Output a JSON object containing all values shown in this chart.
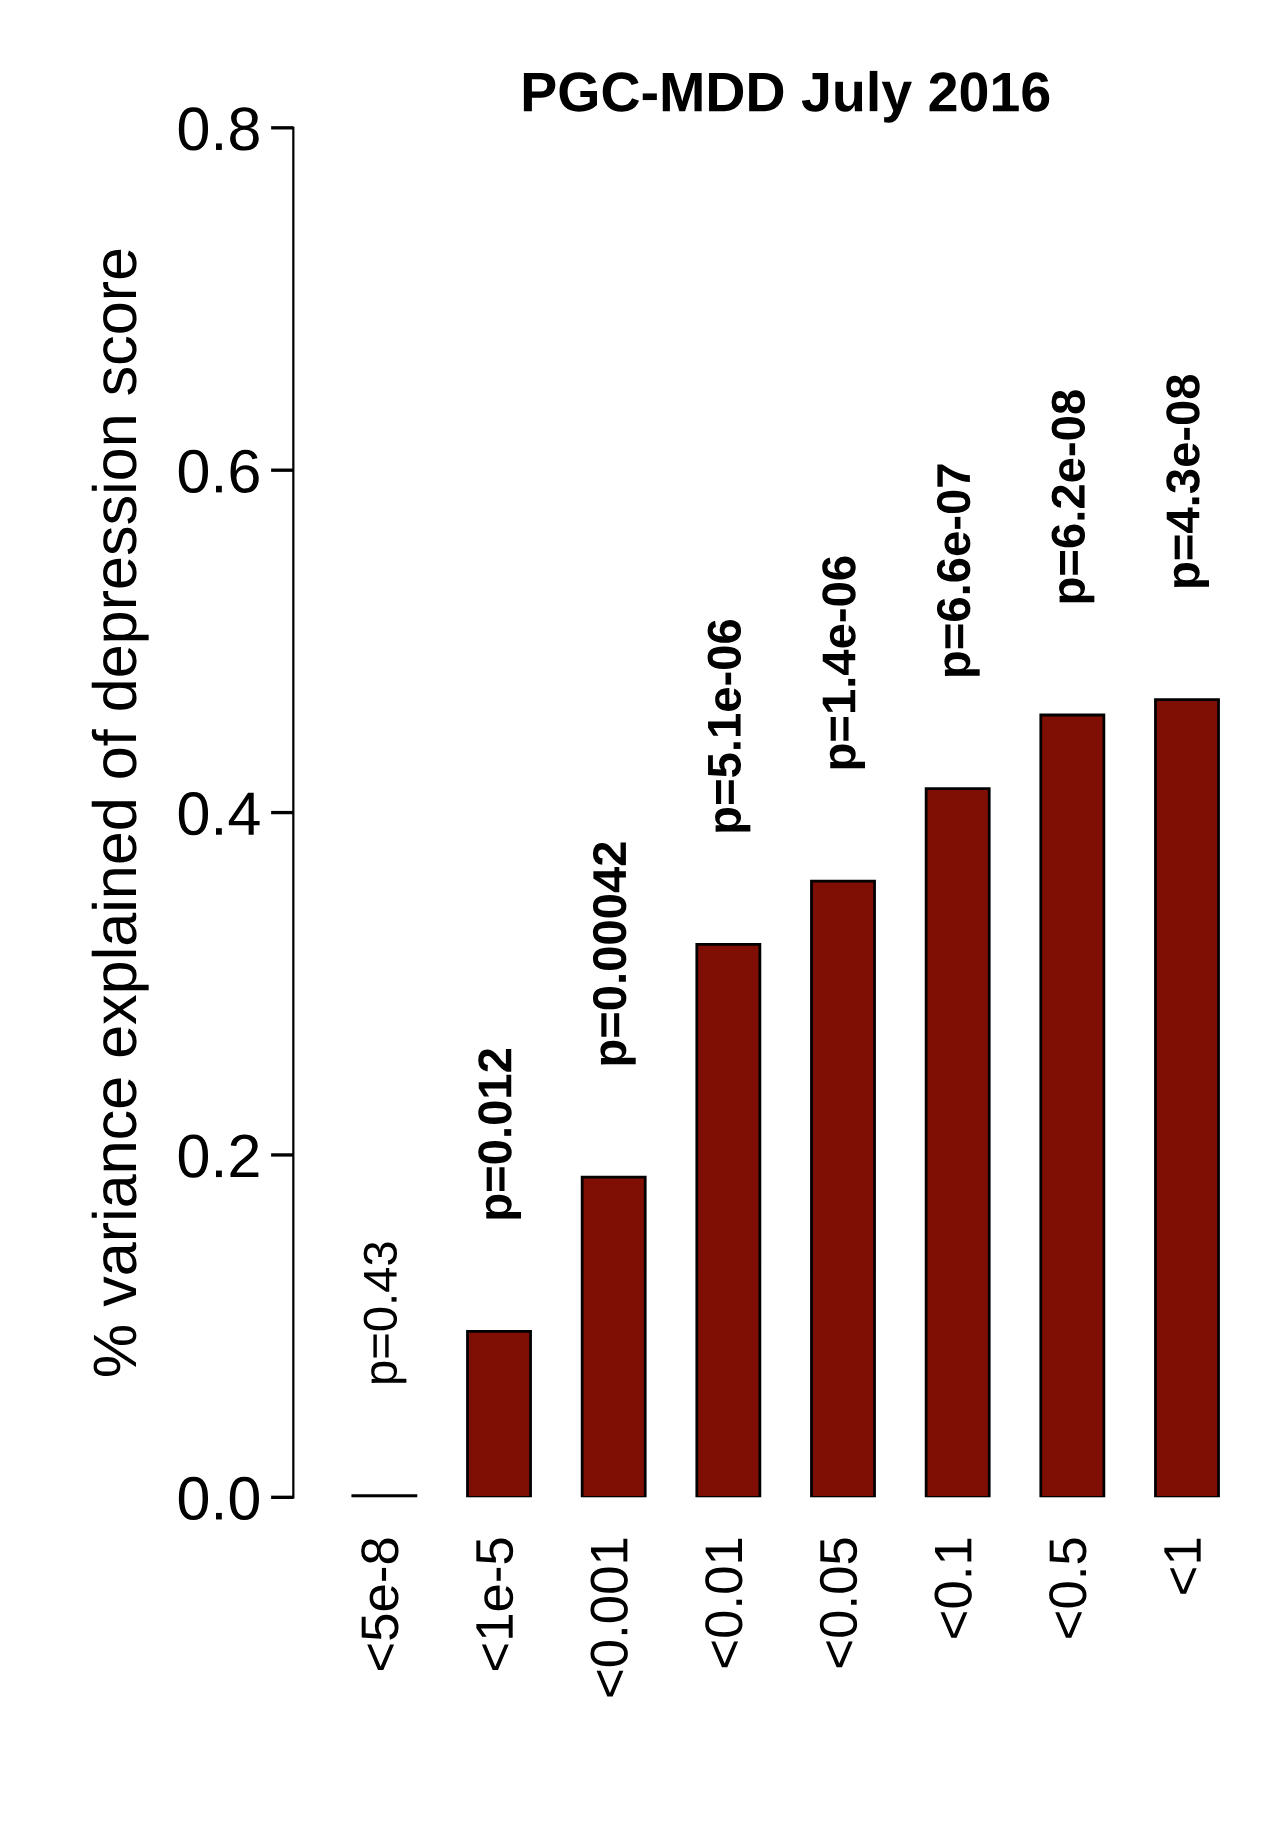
{
  "chart_data": {
    "type": "bar",
    "title": "PGC-MDD July 2016",
    "ylabel": "% variance explained of depression score",
    "categories": [
      "<5e-8",
      "<1e-5",
      "<0.001",
      "<0.01",
      "<0.05",
      "<0.1",
      "<0.5",
      "<1"
    ],
    "values": [
      0.001,
      0.097,
      0.187,
      0.323,
      0.36,
      0.414,
      0.457,
      0.466
    ],
    "annotations": [
      {
        "text": "p=0.43",
        "x": "<5e-8",
        "y": 0.001
      },
      {
        "text": "p=0.012",
        "x": "<1e-5",
        "y": 0.097
      },
      {
        "text": "p=0.00042",
        "x": "<0.001",
        "y": 0.187
      },
      {
        "text": "p=5.1e-06",
        "x": "<0.01",
        "y": 0.323
      },
      {
        "text": "p=1.4e-06",
        "x": "<0.05",
        "y": 0.36
      },
      {
        "text": "p=6.6e-07",
        "x": "<0.1",
        "y": 0.414
      },
      {
        "text": "p=6.2e-08",
        "x": "<0.5",
        "y": 0.457
      },
      {
        "text": "p=4.3e-08",
        "x": "<1",
        "y": 0.466
      }
    ],
    "color": "#7f0f04",
    "ylim": [
      0,
      0.8
    ],
    "yticks": [
      {
        "value": 0,
        "label": "0.0"
      },
      {
        "value": 0.2,
        "label": "0.2"
      },
      {
        "value": 0.4,
        "label": "0.4"
      },
      {
        "value": 0.6,
        "label": "0.6"
      },
      {
        "value": 0.8,
        "label": "0.8"
      }
    ],
    "grid": false,
    "legend": false
  }
}
